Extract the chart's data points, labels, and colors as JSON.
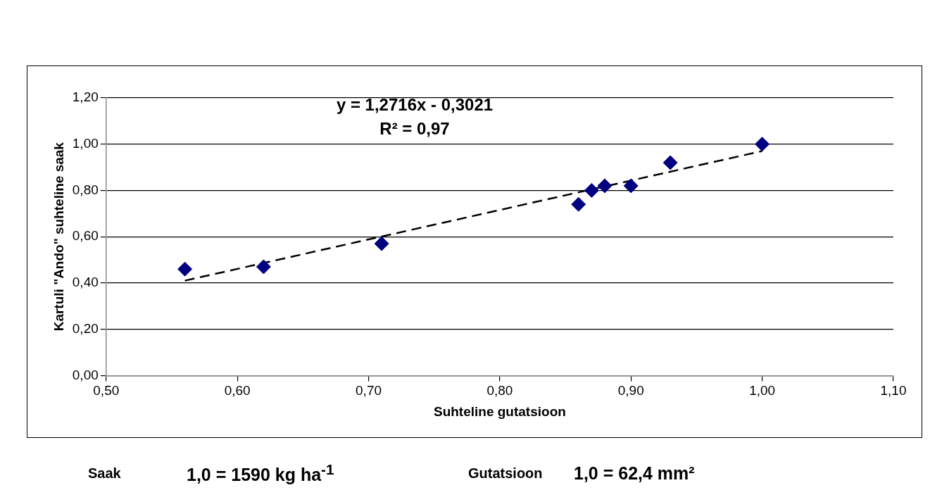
{
  "chart_data": {
    "type": "scatter",
    "xlabel": "Suhteline gutatsioon",
    "ylabel": "Kartuli \"Ando\" suhteline saak",
    "annotations": [
      "y = 1,2716x - 0,3021",
      "R² = 0,97",
      "Saak",
      "1,0 = 1590 kg ha$^{-1}$",
      "Gutatsioon",
      "1,0 = 62,4 mm²"
    ],
    "xlim": [
      0.5,
      1.1
    ],
    "xticks": [
      {
        "value": 0.5,
        "label": "0,50"
      },
      {
        "value": 0.6,
        "label": "0,60"
      },
      {
        "value": 0.7,
        "label": "0,70"
      },
      {
        "value": 0.8,
        "label": "0,80"
      },
      {
        "value": 0.9,
        "label": "0,90"
      },
      {
        "value": 1.0,
        "label": "1,00"
      },
      {
        "value": 1.1,
        "label": "1,10"
      }
    ],
    "ylim": [
      0,
      1.2
    ],
    "yticks": [
      {
        "value": 0,
        "label": "0,00"
      },
      {
        "value": 0.2,
        "label": "0,20"
      },
      {
        "value": 0.4,
        "label": "0,40"
      },
      {
        "value": 0.6,
        "label": "0,60"
      },
      {
        "value": 0.8,
        "label": "0,80"
      },
      {
        "value": 1.0,
        "label": "1,00"
      },
      {
        "value": 1.2,
        "label": "1,20"
      }
    ],
    "grid": "y",
    "series": [
      {
        "type": "scatter",
        "color": "#000080",
        "marker": "diamond",
        "x": [
          0.56,
          0.62,
          0.71,
          0.86,
          0.87,
          0.88,
          0.9,
          0.93,
          1.0
        ],
        "values": [
          0.46,
          0.47,
          0.57,
          0.74,
          0.8,
          0.82,
          0.82,
          0.92,
          1.0
        ]
      },
      {
        "type": "line",
        "color": "#000000",
        "line_style": "dashed",
        "marker": "none",
        "x": [
          0.56,
          1.0
        ],
        "values": [
          0.41,
          0.97
        ]
      }
    ]
  }
}
